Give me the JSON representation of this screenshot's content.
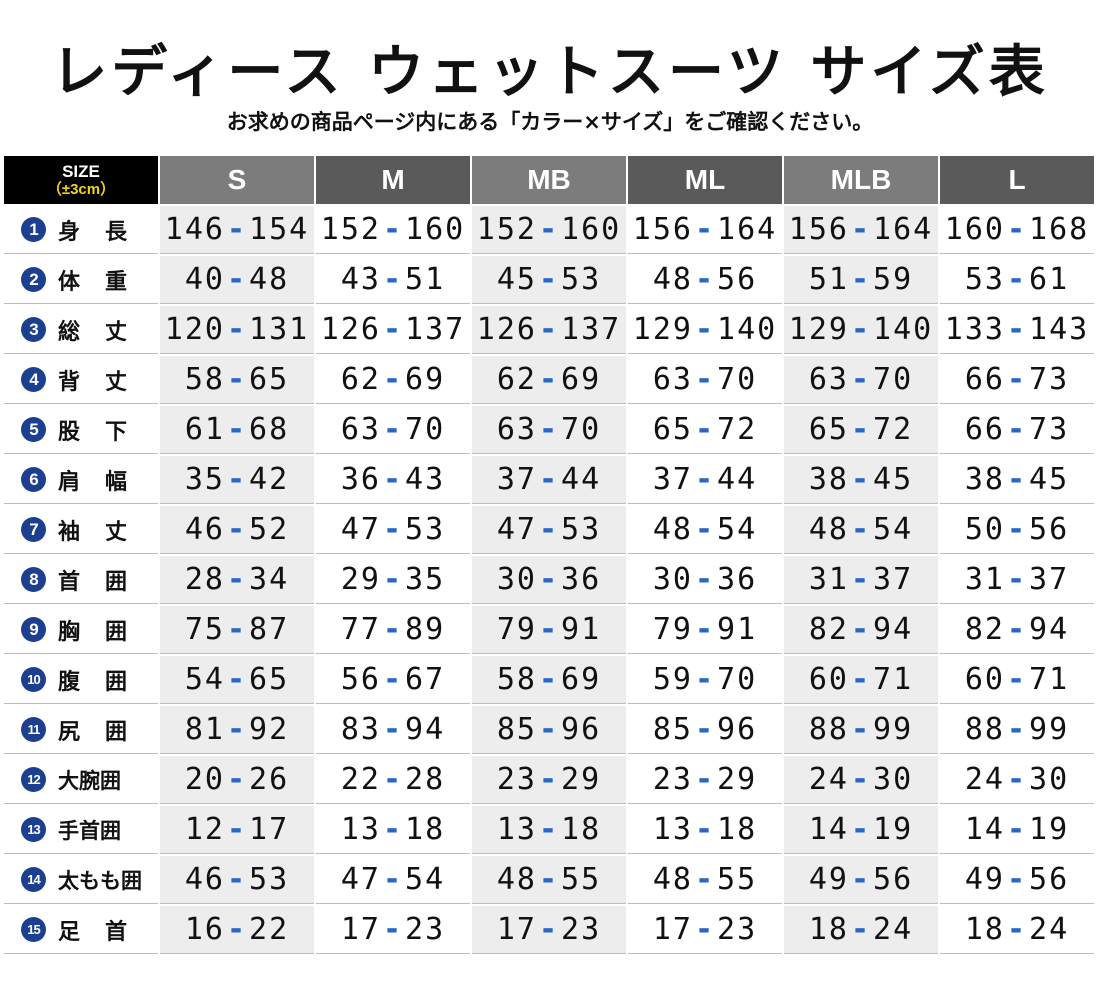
{
  "title": "レディース ウェットスーツ サイズ表",
  "subtitle": "お求めの商品ページ内にある「カラー×サイズ」をご確認ください。",
  "header": {
    "corner_line1": "SIZE",
    "corner_line2": "（±3cm）",
    "sizes": [
      "S",
      "M",
      "MB",
      "ML",
      "MLB",
      "L"
    ]
  },
  "colors": {
    "header_light": "#7c7c7c",
    "header_dark": "#5a5a5a",
    "corner_bg": "#000000",
    "corner_accent": "#f2d21d",
    "number_badge": "#1c3f8f",
    "dash_accent": "#2a66c6",
    "shaded_column": "#ededed"
  },
  "rows": [
    {
      "num": "1",
      "name": "身長",
      "values": [
        [
          "146",
          "154"
        ],
        [
          "152",
          "160"
        ],
        [
          "152",
          "160"
        ],
        [
          "156",
          "164"
        ],
        [
          "156",
          "164"
        ],
        [
          "160",
          "168"
        ]
      ]
    },
    {
      "num": "2",
      "name": "体重",
      "values": [
        [
          "40",
          "48"
        ],
        [
          "43",
          "51"
        ],
        [
          "45",
          "53"
        ],
        [
          "48",
          "56"
        ],
        [
          "51",
          "59"
        ],
        [
          "53",
          "61"
        ]
      ]
    },
    {
      "num": "3",
      "name": "総丈",
      "values": [
        [
          "120",
          "131"
        ],
        [
          "126",
          "137"
        ],
        [
          "126",
          "137"
        ],
        [
          "129",
          "140"
        ],
        [
          "129",
          "140"
        ],
        [
          "133",
          "143"
        ]
      ]
    },
    {
      "num": "4",
      "name": "背丈",
      "values": [
        [
          "58",
          "65"
        ],
        [
          "62",
          "69"
        ],
        [
          "62",
          "69"
        ],
        [
          "63",
          "70"
        ],
        [
          "63",
          "70"
        ],
        [
          "66",
          "73"
        ]
      ]
    },
    {
      "num": "5",
      "name": "股下",
      "values": [
        [
          "61",
          "68"
        ],
        [
          "63",
          "70"
        ],
        [
          "63",
          "70"
        ],
        [
          "65",
          "72"
        ],
        [
          "65",
          "72"
        ],
        [
          "66",
          "73"
        ]
      ]
    },
    {
      "num": "6",
      "name": "肩幅",
      "values": [
        [
          "35",
          "42"
        ],
        [
          "36",
          "43"
        ],
        [
          "37",
          "44"
        ],
        [
          "37",
          "44"
        ],
        [
          "38",
          "45"
        ],
        [
          "38",
          "45"
        ]
      ]
    },
    {
      "num": "7",
      "name": "袖丈",
      "values": [
        [
          "46",
          "52"
        ],
        [
          "47",
          "53"
        ],
        [
          "47",
          "53"
        ],
        [
          "48",
          "54"
        ],
        [
          "48",
          "54"
        ],
        [
          "50",
          "56"
        ]
      ]
    },
    {
      "num": "8",
      "name": "首囲",
      "values": [
        [
          "28",
          "34"
        ],
        [
          "29",
          "35"
        ],
        [
          "30",
          "36"
        ],
        [
          "30",
          "36"
        ],
        [
          "31",
          "37"
        ],
        [
          "31",
          "37"
        ]
      ]
    },
    {
      "num": "9",
      "name": "胸囲",
      "values": [
        [
          "75",
          "87"
        ],
        [
          "77",
          "89"
        ],
        [
          "79",
          "91"
        ],
        [
          "79",
          "91"
        ],
        [
          "82",
          "94"
        ],
        [
          "82",
          "94"
        ]
      ]
    },
    {
      "num": "10",
      "name": "腹囲",
      "values": [
        [
          "54",
          "65"
        ],
        [
          "56",
          "67"
        ],
        [
          "58",
          "69"
        ],
        [
          "59",
          "70"
        ],
        [
          "60",
          "71"
        ],
        [
          "60",
          "71"
        ]
      ]
    },
    {
      "num": "11",
      "name": "尻囲",
      "values": [
        [
          "81",
          "92"
        ],
        [
          "83",
          "94"
        ],
        [
          "85",
          "96"
        ],
        [
          "85",
          "96"
        ],
        [
          "88",
          "99"
        ],
        [
          "88",
          "99"
        ]
      ]
    },
    {
      "num": "12",
      "name": "大腕囲",
      "values": [
        [
          "20",
          "26"
        ],
        [
          "22",
          "28"
        ],
        [
          "23",
          "29"
        ],
        [
          "23",
          "29"
        ],
        [
          "24",
          "30"
        ],
        [
          "24",
          "30"
        ]
      ]
    },
    {
      "num": "13",
      "name": "手首囲",
      "values": [
        [
          "12",
          "17"
        ],
        [
          "13",
          "18"
        ],
        [
          "13",
          "18"
        ],
        [
          "13",
          "18"
        ],
        [
          "14",
          "19"
        ],
        [
          "14",
          "19"
        ]
      ]
    },
    {
      "num": "14",
      "name": "太もも囲",
      "values": [
        [
          "46",
          "53"
        ],
        [
          "47",
          "54"
        ],
        [
          "48",
          "55"
        ],
        [
          "48",
          "55"
        ],
        [
          "49",
          "56"
        ],
        [
          "49",
          "56"
        ]
      ]
    },
    {
      "num": "15",
      "name": "足首",
      "values": [
        [
          "16",
          "22"
        ],
        [
          "17",
          "23"
        ],
        [
          "17",
          "23"
        ],
        [
          "17",
          "23"
        ],
        [
          "18",
          "24"
        ],
        [
          "18",
          "24"
        ]
      ]
    }
  ]
}
